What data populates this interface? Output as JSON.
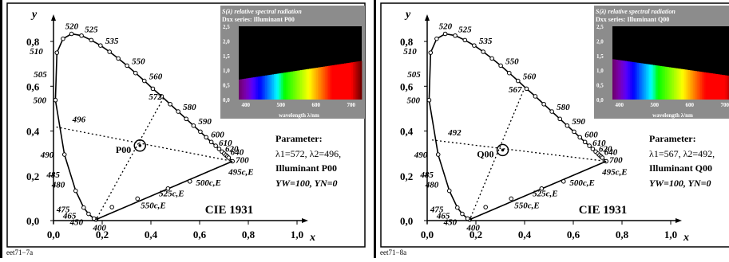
{
  "chart_data": [
    {
      "type": "scatter",
      "title": "CIE 1931",
      "xlabel": "x",
      "ylabel": "y",
      "xlim": [
        0,
        1.0
      ],
      "ylim": [
        0,
        0.85
      ],
      "xticks": [
        "0,0",
        "0,2",
        "0,4",
        "0,6",
        "0,8",
        "1,0"
      ],
      "yticks": [
        "0,0",
        "0,2",
        "0,4",
        "0,6",
        "0,8"
      ],
      "locus": {
        "points": [
          [
            0.175,
            0.005
          ],
          [
            0.172,
            0.005
          ],
          [
            0.166,
            0.009
          ],
          [
            0.144,
            0.03
          ],
          [
            0.124,
            0.058
          ],
          [
            0.091,
            0.133
          ],
          [
            0.045,
            0.295
          ],
          [
            0.008,
            0.538
          ],
          [
            0.014,
            0.75
          ],
          [
            0.039,
            0.812
          ],
          [
            0.074,
            0.834
          ],
          [
            0.115,
            0.826
          ],
          [
            0.155,
            0.806
          ],
          [
            0.193,
            0.782
          ],
          [
            0.23,
            0.754
          ],
          [
            0.266,
            0.724
          ],
          [
            0.302,
            0.692
          ],
          [
            0.337,
            0.659
          ],
          [
            0.373,
            0.624
          ],
          [
            0.408,
            0.589
          ],
          [
            0.444,
            0.555
          ],
          [
            0.479,
            0.52
          ],
          [
            0.512,
            0.487
          ],
          [
            0.545,
            0.454
          ],
          [
            0.575,
            0.424
          ],
          [
            0.603,
            0.397
          ],
          [
            0.627,
            0.372
          ],
          [
            0.648,
            0.351
          ],
          [
            0.666,
            0.334
          ],
          [
            0.68,
            0.32
          ],
          [
            0.692,
            0.308
          ],
          [
            0.701,
            0.299
          ],
          [
            0.708,
            0.292
          ],
          [
            0.714,
            0.286
          ],
          [
            0.719,
            0.281
          ],
          [
            0.735,
            0.265
          ]
        ],
        "wavelength_labels": [
          {
            "text": "400",
            "x": 0.175,
            "y": 0.005,
            "dx": -4,
            "dy": 14
          },
          {
            "text": "450",
            "x": 0.166,
            "y": 0.009,
            "dx": -30,
            "dy": 8
          },
          {
            "text": "465",
            "x": 0.144,
            "y": 0.03,
            "dx": -32,
            "dy": 6
          },
          {
            "text": "475",
            "x": 0.124,
            "y": 0.058,
            "dx": -34,
            "dy": 6
          },
          {
            "text": "480",
            "x": 0.091,
            "y": 0.133,
            "dx": -30,
            "dy": -4
          },
          {
            "text": "485",
            "x": 0.07,
            "y": 0.2,
            "dx": -30,
            "dy": 2
          },
          {
            "text": "490",
            "x": 0.045,
            "y": 0.295,
            "dx": -30,
            "dy": 4
          },
          {
            "text": "500",
            "x": 0.008,
            "y": 0.538,
            "dx": -28,
            "dy": 4
          },
          {
            "text": "505",
            "x": 0.004,
            "y": 0.655,
            "dx": -26,
            "dy": 4
          },
          {
            "text": "510",
            "x": 0.014,
            "y": 0.75,
            "dx": -34,
            "dy": 2
          },
          {
            "text": "520",
            "x": 0.074,
            "y": 0.834,
            "dx": -8,
            "dy": -6
          },
          {
            "text": "525",
            "x": 0.115,
            "y": 0.826,
            "dx": 4,
            "dy": -4
          },
          {
            "text": "535",
            "x": 0.193,
            "y": 0.782,
            "dx": 6,
            "dy": -2
          },
          {
            "text": "550",
            "x": 0.302,
            "y": 0.692,
            "dx": 6,
            "dy": -2
          },
          {
            "text": "560",
            "x": 0.373,
            "y": 0.624,
            "dx": 6,
            "dy": -2
          },
          {
            "text": "580",
            "x": 0.512,
            "y": 0.487,
            "dx": 6,
            "dy": -2
          },
          {
            "text": "590",
            "x": 0.575,
            "y": 0.424,
            "dx": 6,
            "dy": -2
          },
          {
            "text": "600",
            "x": 0.627,
            "y": 0.372,
            "dx": 6,
            "dy": 0
          },
          {
            "text": "610",
            "x": 0.666,
            "y": 0.334,
            "dx": 4,
            "dy": 0
          },
          {
            "text": "620",
            "x": 0.692,
            "y": 0.308,
            "dx": 4,
            "dy": 0
          },
          {
            "text": "640",
            "x": 0.714,
            "y": 0.286,
            "dx": 4,
            "dy": -2
          },
          {
            "text": "700",
            "x": 0.735,
            "y": 0.265,
            "dx": 4,
            "dy": 2
          }
        ]
      },
      "purple_line_points": [
        {
          "x": 0.24,
          "y": 0.06
        },
        {
          "x": 0.345,
          "y": 0.098
        },
        {
          "x": 0.47,
          "y": 0.143
        },
        {
          "x": 0.56,
          "y": 0.175
        }
      ],
      "purple_line_labels": [
        {
          "text": "495c,E",
          "x": 0.712,
          "y": 0.255,
          "dx": 2,
          "dy": 14
        },
        {
          "text": "500c,E",
          "x": 0.565,
          "y": 0.178,
          "dx": 6,
          "dy": 6
        },
        {
          "text": "525c,E",
          "x": 0.42,
          "y": 0.122,
          "dx": 4,
          "dy": 4
        },
        {
          "text": "550c,E",
          "x": 0.345,
          "y": 0.098,
          "dx": 4,
          "dy": 12
        }
      ],
      "illuminant": {
        "label": "P00",
        "x": 0.355,
        "y": 0.335
      },
      "dominant_ray": {
        "label": "572",
        "x": 0.452,
        "y": 0.548
      },
      "complementary_ray": {
        "label": "496",
        "x": 0.012,
        "y": 0.418
      },
      "inset": {
        "title": "S(λ) relative spectral radiation",
        "subtitle": "Dxx series: Illuminant P00",
        "xlabel": "wavelength λ/nm",
        "xticks": [
          "400",
          "500",
          "600",
          "700"
        ],
        "yticks": [
          "0,0",
          "0,5",
          "1,0",
          "1,5",
          "2,0",
          "2,5"
        ],
        "spectrum": {
          "wavelengths": [
            380,
            730
          ],
          "values": [
            0.68,
            1.32
          ]
        }
      },
      "parameter": {
        "heading": "Parameter:",
        "line1": "λ1=572, λ2=496,",
        "line2": "Illuminant P00",
        "line3": "YW=100, YN=0"
      },
      "footer": "eet71−7a"
    },
    {
      "type": "scatter",
      "title": "CIE 1931",
      "xlabel": "x",
      "ylabel": "y",
      "xlim": [
        0,
        1.0
      ],
      "ylim": [
        0,
        0.85
      ],
      "xticks": [
        "0,0",
        "0,2",
        "0,4",
        "0,6",
        "0,8",
        "1,0"
      ],
      "yticks": [
        "0,0",
        "0,2",
        "0,4",
        "0,6",
        "0,8"
      ],
      "locus": {
        "points": [
          [
            0.175,
            0.005
          ],
          [
            0.172,
            0.005
          ],
          [
            0.166,
            0.009
          ],
          [
            0.144,
            0.03
          ],
          [
            0.124,
            0.058
          ],
          [
            0.091,
            0.133
          ],
          [
            0.045,
            0.295
          ],
          [
            0.008,
            0.538
          ],
          [
            0.014,
            0.75
          ],
          [
            0.039,
            0.812
          ],
          [
            0.074,
            0.834
          ],
          [
            0.115,
            0.826
          ],
          [
            0.155,
            0.806
          ],
          [
            0.193,
            0.782
          ],
          [
            0.23,
            0.754
          ],
          [
            0.266,
            0.724
          ],
          [
            0.302,
            0.692
          ],
          [
            0.337,
            0.659
          ],
          [
            0.373,
            0.624
          ],
          [
            0.408,
            0.589
          ],
          [
            0.444,
            0.555
          ],
          [
            0.479,
            0.52
          ],
          [
            0.512,
            0.487
          ],
          [
            0.545,
            0.454
          ],
          [
            0.575,
            0.424
          ],
          [
            0.603,
            0.397
          ],
          [
            0.627,
            0.372
          ],
          [
            0.648,
            0.351
          ],
          [
            0.666,
            0.334
          ],
          [
            0.68,
            0.32
          ],
          [
            0.692,
            0.308
          ],
          [
            0.701,
            0.299
          ],
          [
            0.708,
            0.292
          ],
          [
            0.714,
            0.286
          ],
          [
            0.719,
            0.281
          ],
          [
            0.735,
            0.265
          ]
        ],
        "wavelength_labels": [
          {
            "text": "400",
            "x": 0.175,
            "y": 0.005,
            "dx": -4,
            "dy": 14
          },
          {
            "text": "450",
            "x": 0.166,
            "y": 0.009,
            "dx": -30,
            "dy": 8
          },
          {
            "text": "465",
            "x": 0.144,
            "y": 0.03,
            "dx": -32,
            "dy": 6
          },
          {
            "text": "475",
            "x": 0.124,
            "y": 0.058,
            "dx": -34,
            "dy": 6
          },
          {
            "text": "480",
            "x": 0.091,
            "y": 0.133,
            "dx": -30,
            "dy": -4
          },
          {
            "text": "485",
            "x": 0.07,
            "y": 0.2,
            "dx": -30,
            "dy": 2
          },
          {
            "text": "490",
            "x": 0.045,
            "y": 0.295,
            "dx": -30,
            "dy": 4
          },
          {
            "text": "500",
            "x": 0.008,
            "y": 0.538,
            "dx": -28,
            "dy": 4
          },
          {
            "text": "505",
            "x": 0.004,
            "y": 0.655,
            "dx": -26,
            "dy": 4
          },
          {
            "text": "510",
            "x": 0.014,
            "y": 0.75,
            "dx": -34,
            "dy": 2
          },
          {
            "text": "520",
            "x": 0.074,
            "y": 0.834,
            "dx": -8,
            "dy": -6
          },
          {
            "text": "525",
            "x": 0.115,
            "y": 0.826,
            "dx": 4,
            "dy": -4
          },
          {
            "text": "535",
            "x": 0.193,
            "y": 0.782,
            "dx": 6,
            "dy": -2
          },
          {
            "text": "550",
            "x": 0.302,
            "y": 0.692,
            "dx": 6,
            "dy": -2
          },
          {
            "text": "560",
            "x": 0.373,
            "y": 0.624,
            "dx": 6,
            "dy": -2
          },
          {
            "text": "580",
            "x": 0.512,
            "y": 0.487,
            "dx": 6,
            "dy": -2
          },
          {
            "text": "590",
            "x": 0.575,
            "y": 0.424,
            "dx": 6,
            "dy": -2
          },
          {
            "text": "600",
            "x": 0.627,
            "y": 0.372,
            "dx": 6,
            "dy": 0
          },
          {
            "text": "610",
            "x": 0.666,
            "y": 0.334,
            "dx": 4,
            "dy": 0
          },
          {
            "text": "620",
            "x": 0.692,
            "y": 0.308,
            "dx": 4,
            "dy": 0
          },
          {
            "text": "640",
            "x": 0.714,
            "y": 0.286,
            "dx": 4,
            "dy": -2
          },
          {
            "text": "700",
            "x": 0.735,
            "y": 0.265,
            "dx": 4,
            "dy": 2
          }
        ]
      },
      "purple_line_points": [
        {
          "x": 0.24,
          "y": 0.06
        },
        {
          "x": 0.345,
          "y": 0.098
        },
        {
          "x": 0.47,
          "y": 0.143
        },
        {
          "x": 0.56,
          "y": 0.175
        }
      ],
      "purple_line_labels": [
        {
          "text": "495c,E",
          "x": 0.712,
          "y": 0.255,
          "dx": 2,
          "dy": 14
        },
        {
          "text": "500c,E",
          "x": 0.565,
          "y": 0.178,
          "dx": 6,
          "dy": 6
        },
        {
          "text": "525c,E",
          "x": 0.42,
          "y": 0.122,
          "dx": 4,
          "dy": 4
        },
        {
          "text": "550c,E",
          "x": 0.345,
          "y": 0.098,
          "dx": 4,
          "dy": 12
        }
      ],
      "illuminant": {
        "label": "Q00",
        "x": 0.31,
        "y": 0.315
      },
      "dominant_ray": {
        "label": "567",
        "x": 0.395,
        "y": 0.58
      },
      "complementary_ray": {
        "label": "492",
        "x": 0.02,
        "y": 0.36
      },
      "inset": {
        "title": "S(λ) relative spectral radiation",
        "subtitle": "Dxx series: Illuminant Q00",
        "xlabel": "wavelength λ/nm",
        "xticks": [
          "400",
          "500",
          "600",
          "700"
        ],
        "yticks": [
          "0,0",
          "0,5",
          "1,0",
          "1,5",
          "2,0",
          "2,5"
        ],
        "spectrum": {
          "wavelengths": [
            380,
            730
          ],
          "values": [
            1.38,
            0.78
          ]
        }
      },
      "parameter": {
        "heading": "Parameter:",
        "line1": "λ1=567, λ2=492,",
        "line2": "Illuminant Q00",
        "line3": "YW=100, YN=0"
      },
      "footer": "eet71−8a"
    }
  ]
}
